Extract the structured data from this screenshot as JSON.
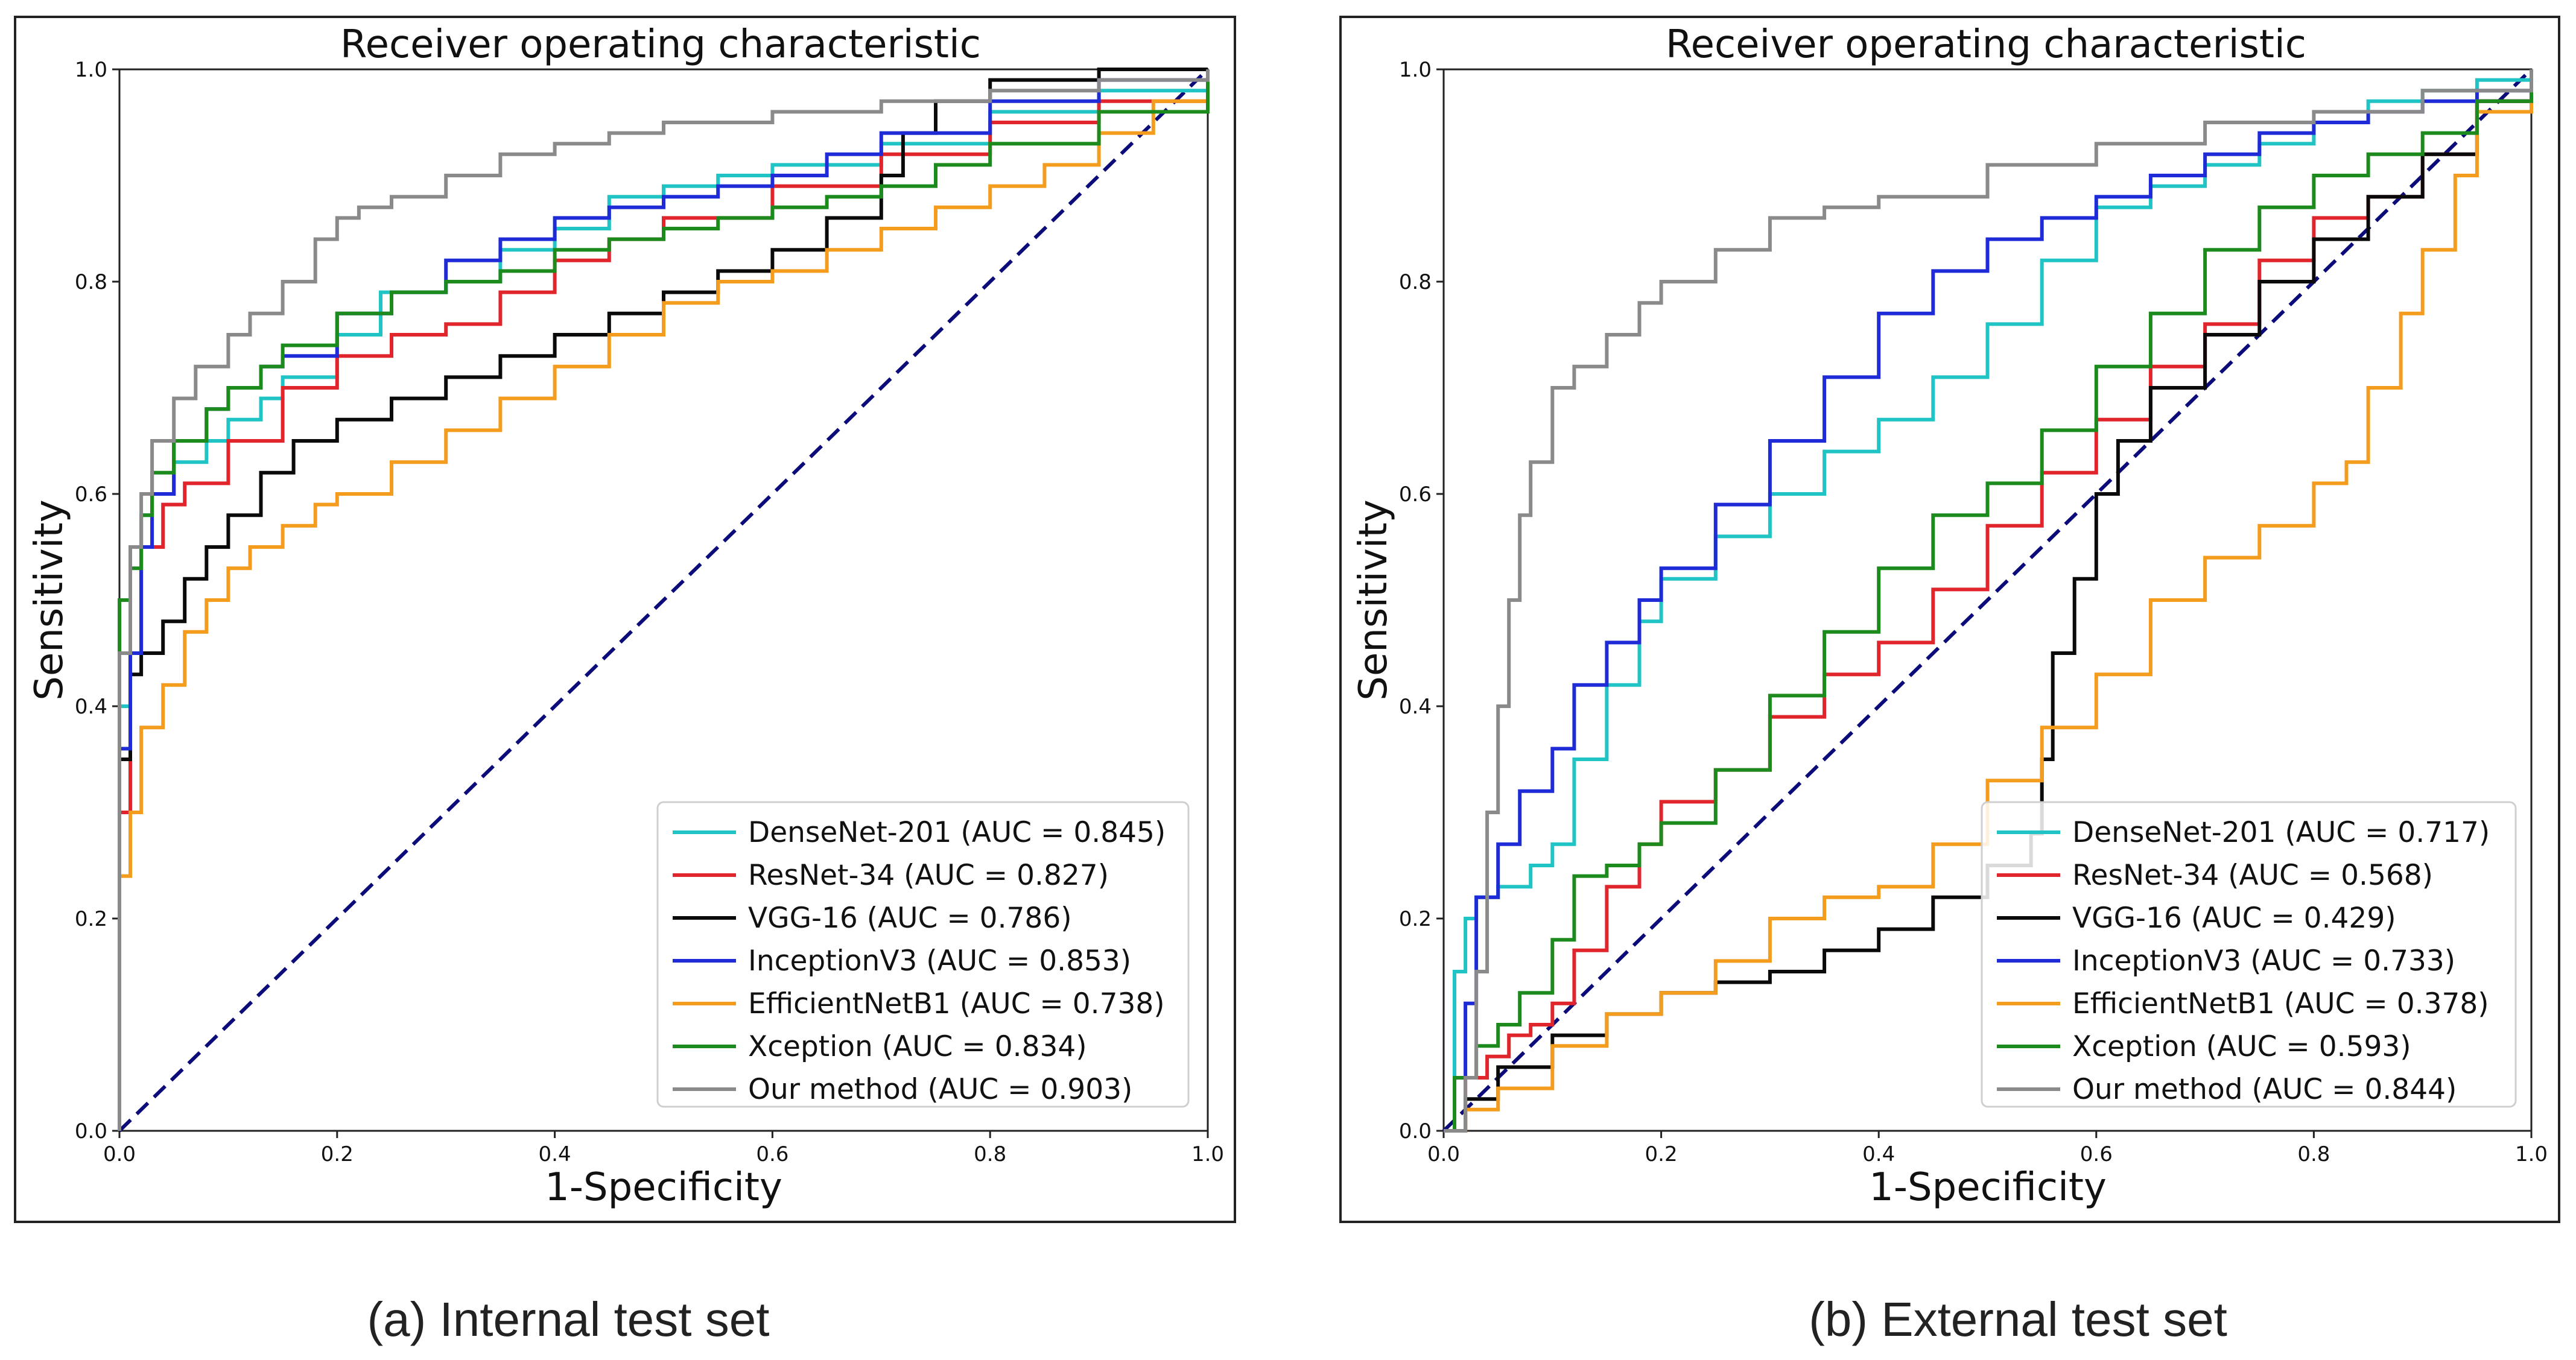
{
  "colors": {
    "DenseNet-201": "#21c4c4",
    "ResNet-34": "#e0262c",
    "VGG-16": "#0a0a0a",
    "InceptionV3": "#1f2bd6",
    "EfficientNetB1": "#f39c1d",
    "Xception": "#1c8a1c",
    "Our method": "#8a8a8a",
    "chance": "#0b0b7a"
  },
  "chart_data": [
    {
      "type": "line",
      "title": "Receiver operating characteristic",
      "xlabel": "1-Specificity",
      "ylabel": "Sensitivity",
      "xlim": [
        0,
        1
      ],
      "ylim": [
        0,
        1
      ],
      "xticks": [
        "0.0",
        "0.2",
        "0.4",
        "0.6",
        "0.8",
        "1.0"
      ],
      "yticks": [
        "0.0",
        "0.2",
        "0.4",
        "0.6",
        "0.8",
        "1.0"
      ],
      "legend_position": "lower-right",
      "caption": "(a)  Internal test set",
      "series": [
        {
          "name": "DenseNet-201",
          "legend": "DenseNet-201 (AUC = 0.845)",
          "x": [
            0,
            0,
            0.01,
            0.01,
            0.02,
            0.03,
            0.05,
            0.08,
            0.1,
            0.13,
            0.15,
            0.2,
            0.24,
            0.3,
            0.35,
            0.4,
            0.45,
            0.5,
            0.55,
            0.6,
            0.7,
            0.8,
            0.9,
            1
          ],
          "y": [
            0,
            0.4,
            0.45,
            0.55,
            0.58,
            0.6,
            0.63,
            0.65,
            0.67,
            0.69,
            0.71,
            0.75,
            0.79,
            0.8,
            0.83,
            0.85,
            0.88,
            0.89,
            0.9,
            0.91,
            0.93,
            0.96,
            0.98,
            1
          ]
        },
        {
          "name": "ResNet-34",
          "legend": "ResNet-34 (AUC = 0.827)",
          "x": [
            0,
            0,
            0.01,
            0.02,
            0.04,
            0.06,
            0.1,
            0.15,
            0.2,
            0.25,
            0.3,
            0.35,
            0.4,
            0.45,
            0.5,
            0.6,
            0.7,
            0.8,
            0.9,
            1
          ],
          "y": [
            0,
            0.3,
            0.45,
            0.55,
            0.59,
            0.61,
            0.65,
            0.7,
            0.73,
            0.75,
            0.76,
            0.79,
            0.82,
            0.84,
            0.86,
            0.89,
            0.92,
            0.95,
            0.97,
            1
          ]
        },
        {
          "name": "VGG-16",
          "legend": "VGG-16 (AUC = 0.786)",
          "x": [
            0,
            0,
            0.01,
            0.02,
            0.04,
            0.06,
            0.08,
            0.1,
            0.13,
            0.16,
            0.2,
            0.25,
            0.3,
            0.35,
            0.4,
            0.45,
            0.5,
            0.55,
            0.6,
            0.65,
            0.7,
            0.72,
            0.75,
            0.8,
            0.9,
            1
          ],
          "y": [
            0,
            0.35,
            0.43,
            0.45,
            0.48,
            0.52,
            0.55,
            0.58,
            0.62,
            0.65,
            0.67,
            0.69,
            0.71,
            0.73,
            0.75,
            0.77,
            0.79,
            0.81,
            0.83,
            0.86,
            0.9,
            0.94,
            0.97,
            0.99,
            1,
            1
          ]
        },
        {
          "name": "InceptionV3",
          "legend": "InceptionV3 (AUC = 0.853)",
          "x": [
            0,
            0,
            0.01,
            0.02,
            0.03,
            0.05,
            0.08,
            0.1,
            0.13,
            0.15,
            0.2,
            0.25,
            0.3,
            0.35,
            0.4,
            0.45,
            0.5,
            0.55,
            0.6,
            0.65,
            0.7,
            0.8,
            0.9,
            1
          ],
          "y": [
            0,
            0.36,
            0.45,
            0.55,
            0.6,
            0.65,
            0.68,
            0.7,
            0.72,
            0.73,
            0.77,
            0.79,
            0.82,
            0.84,
            0.86,
            0.87,
            0.88,
            0.89,
            0.9,
            0.92,
            0.94,
            0.97,
            0.99,
            1
          ]
        },
        {
          "name": "EfficientNetB1",
          "legend": "EfficientNetB1 (AUC = 0.738)",
          "x": [
            0,
            0,
            0.01,
            0.02,
            0.04,
            0.06,
            0.08,
            0.1,
            0.12,
            0.15,
            0.18,
            0.2,
            0.25,
            0.3,
            0.35,
            0.4,
            0.45,
            0.5,
            0.55,
            0.6,
            0.65,
            0.7,
            0.75,
            0.8,
            0.85,
            0.9,
            0.95,
            1
          ],
          "y": [
            0,
            0.24,
            0.3,
            0.38,
            0.42,
            0.47,
            0.5,
            0.53,
            0.55,
            0.57,
            0.59,
            0.6,
            0.63,
            0.66,
            0.69,
            0.72,
            0.75,
            0.78,
            0.8,
            0.81,
            0.83,
            0.85,
            0.87,
            0.89,
            0.91,
            0.94,
            0.97,
            1
          ]
        },
        {
          "name": "Xception",
          "legend": "Xception (AUC = 0.834)",
          "x": [
            0,
            0,
            0.01,
            0.02,
            0.03,
            0.05,
            0.08,
            0.1,
            0.13,
            0.15,
            0.2,
            0.25,
            0.3,
            0.35,
            0.4,
            0.45,
            0.5,
            0.55,
            0.6,
            0.65,
            0.7,
            0.75,
            0.8,
            0.9,
            1
          ],
          "y": [
            0,
            0.5,
            0.53,
            0.58,
            0.62,
            0.65,
            0.68,
            0.7,
            0.72,
            0.74,
            0.77,
            0.79,
            0.8,
            0.81,
            0.83,
            0.84,
            0.85,
            0.86,
            0.87,
            0.88,
            0.89,
            0.91,
            0.93,
            0.96,
            1
          ]
        },
        {
          "name": "Our method",
          "legend": "Our method (AUC = 0.903)",
          "x": [
            0,
            0,
            0.01,
            0.02,
            0.03,
            0.05,
            0.07,
            0.1,
            0.12,
            0.15,
            0.18,
            0.2,
            0.22,
            0.25,
            0.3,
            0.35,
            0.4,
            0.45,
            0.5,
            0.6,
            0.7,
            0.8,
            0.9,
            1
          ],
          "y": [
            0,
            0.45,
            0.55,
            0.6,
            0.65,
            0.69,
            0.72,
            0.75,
            0.77,
            0.8,
            0.84,
            0.86,
            0.87,
            0.88,
            0.9,
            0.92,
            0.93,
            0.94,
            0.95,
            0.96,
            0.97,
            0.98,
            0.99,
            1
          ]
        }
      ]
    },
    {
      "type": "line",
      "title": "Receiver operating characteristic",
      "xlabel": "1-Specificity",
      "ylabel": "Sensitivity",
      "xlim": [
        0,
        1
      ],
      "ylim": [
        0,
        1
      ],
      "xticks": [
        "0.0",
        "0.2",
        "0.4",
        "0.6",
        "0.8",
        "1.0"
      ],
      "yticks": [
        "0.0",
        "0.2",
        "0.4",
        "0.6",
        "0.8",
        "1.0"
      ],
      "legend_position": "lower-right",
      "caption": "(b)  External test set",
      "series": [
        {
          "name": "DenseNet-201",
          "legend": "DenseNet-201 (AUC = 0.717)",
          "x": [
            0,
            0.01,
            0.02,
            0.03,
            0.05,
            0.08,
            0.1,
            0.12,
            0.15,
            0.18,
            0.2,
            0.25,
            0.3,
            0.35,
            0.4,
            0.45,
            0.5,
            0.55,
            0.6,
            0.65,
            0.7,
            0.75,
            0.8,
            0.85,
            0.9,
            0.95,
            1
          ],
          "y": [
            0,
            0.15,
            0.2,
            0.22,
            0.23,
            0.25,
            0.27,
            0.35,
            0.42,
            0.48,
            0.52,
            0.56,
            0.6,
            0.64,
            0.67,
            0.71,
            0.76,
            0.82,
            0.87,
            0.89,
            0.91,
            0.93,
            0.95,
            0.97,
            0.98,
            0.99,
            1
          ]
        },
        {
          "name": "ResNet-34",
          "legend": "ResNet-34 (AUC = 0.568)",
          "x": [
            0,
            0.02,
            0.04,
            0.06,
            0.08,
            0.1,
            0.12,
            0.15,
            0.18,
            0.2,
            0.25,
            0.3,
            0.35,
            0.4,
            0.45,
            0.5,
            0.55,
            0.6,
            0.65,
            0.7,
            0.75,
            0.8,
            0.85,
            0.9,
            0.95,
            1
          ],
          "y": [
            0,
            0.05,
            0.07,
            0.09,
            0.1,
            0.12,
            0.17,
            0.23,
            0.27,
            0.31,
            0.34,
            0.39,
            0.43,
            0.46,
            0.51,
            0.57,
            0.62,
            0.67,
            0.72,
            0.76,
            0.82,
            0.86,
            0.88,
            0.92,
            0.97,
            1
          ]
        },
        {
          "name": "VGG-16",
          "legend": "VGG-16 (AUC = 0.429)",
          "x": [
            0,
            0.02,
            0.05,
            0.1,
            0.15,
            0.2,
            0.25,
            0.3,
            0.35,
            0.4,
            0.45,
            0.5,
            0.54,
            0.55,
            0.56,
            0.58,
            0.6,
            0.62,
            0.65,
            0.7,
            0.75,
            0.8,
            0.85,
            0.9,
            0.95,
            1
          ],
          "y": [
            0,
            0.03,
            0.06,
            0.09,
            0.11,
            0.13,
            0.14,
            0.15,
            0.17,
            0.19,
            0.22,
            0.25,
            0.28,
            0.35,
            0.45,
            0.52,
            0.6,
            0.65,
            0.7,
            0.75,
            0.8,
            0.84,
            0.88,
            0.92,
            0.97,
            1
          ]
        },
        {
          "name": "InceptionV3",
          "legend": "InceptionV3 (AUC = 0.733)",
          "x": [
            0,
            0.01,
            0.02,
            0.03,
            0.05,
            0.07,
            0.1,
            0.12,
            0.15,
            0.18,
            0.2,
            0.25,
            0.3,
            0.35,
            0.4,
            0.45,
            0.5,
            0.55,
            0.6,
            0.65,
            0.7,
            0.75,
            0.8,
            0.85,
            0.9,
            0.95,
            1
          ],
          "y": [
            0,
            0.05,
            0.12,
            0.22,
            0.27,
            0.32,
            0.36,
            0.42,
            0.46,
            0.5,
            0.53,
            0.59,
            0.65,
            0.71,
            0.77,
            0.81,
            0.84,
            0.86,
            0.88,
            0.9,
            0.92,
            0.94,
            0.95,
            0.96,
            0.97,
            0.98,
            1
          ]
        },
        {
          "name": "EfficientNetB1",
          "legend": "EfficientNetB1 (AUC = 0.378)",
          "x": [
            0,
            0.02,
            0.05,
            0.1,
            0.15,
            0.2,
            0.25,
            0.3,
            0.35,
            0.4,
            0.45,
            0.5,
            0.55,
            0.6,
            0.65,
            0.7,
            0.75,
            0.8,
            0.83,
            0.85,
            0.88,
            0.9,
            0.93,
            0.95,
            1
          ],
          "y": [
            0,
            0.02,
            0.04,
            0.08,
            0.11,
            0.13,
            0.16,
            0.2,
            0.22,
            0.23,
            0.27,
            0.33,
            0.38,
            0.43,
            0.5,
            0.54,
            0.57,
            0.61,
            0.63,
            0.7,
            0.77,
            0.83,
            0.9,
            0.96,
            1
          ]
        },
        {
          "name": "Xception",
          "legend": "Xception (AUC = 0.593)",
          "x": [
            0,
            0.01,
            0.03,
            0.05,
            0.07,
            0.1,
            0.12,
            0.15,
            0.18,
            0.2,
            0.25,
            0.3,
            0.35,
            0.4,
            0.45,
            0.5,
            0.55,
            0.6,
            0.65,
            0.7,
            0.75,
            0.8,
            0.85,
            0.9,
            0.95,
            1
          ],
          "y": [
            0,
            0.05,
            0.08,
            0.1,
            0.13,
            0.18,
            0.24,
            0.25,
            0.27,
            0.29,
            0.34,
            0.41,
            0.47,
            0.53,
            0.58,
            0.61,
            0.66,
            0.72,
            0.77,
            0.83,
            0.87,
            0.9,
            0.92,
            0.94,
            0.97,
            1
          ]
        },
        {
          "name": "Our method",
          "legend": "Our method (AUC = 0.844)",
          "x": [
            0,
            0.02,
            0.03,
            0.04,
            0.05,
            0.06,
            0.07,
            0.08,
            0.1,
            0.12,
            0.15,
            0.18,
            0.2,
            0.25,
            0.3,
            0.35,
            0.4,
            0.5,
            0.6,
            0.7,
            0.8,
            0.9,
            1
          ],
          "y": [
            0,
            0.05,
            0.15,
            0.3,
            0.4,
            0.5,
            0.58,
            0.63,
            0.7,
            0.72,
            0.75,
            0.78,
            0.8,
            0.83,
            0.86,
            0.87,
            0.88,
            0.91,
            0.93,
            0.95,
            0.96,
            0.98,
            1
          ]
        }
      ]
    }
  ]
}
